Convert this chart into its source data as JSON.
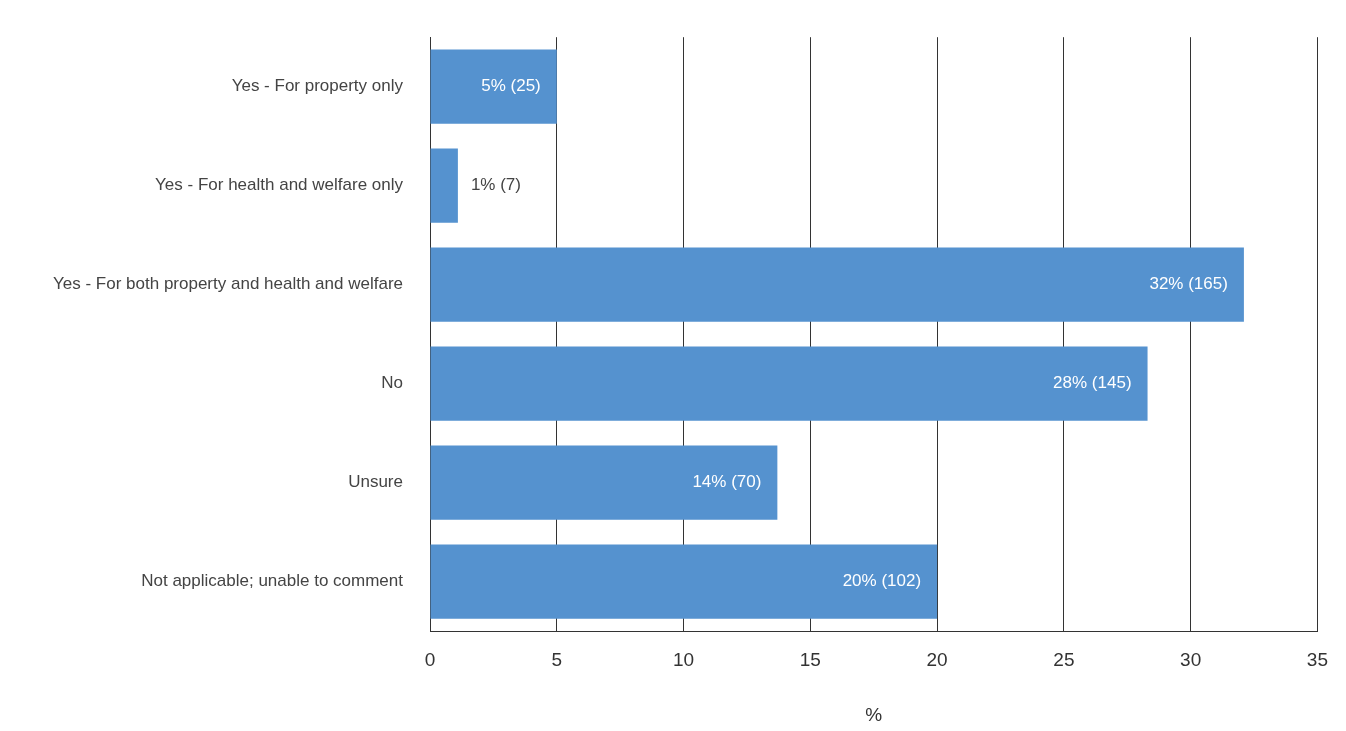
{
  "chart_data": {
    "type": "bar",
    "orientation": "horizontal",
    "categories": [
      "Yes - For property only",
      "Yes - For health and welfare only",
      "Yes - For both property and health and welfare",
      "No",
      "Unsure",
      "Not applicable; unable to comment"
    ],
    "values": [
      5.0,
      1.1,
      32.1,
      28.3,
      13.7,
      20.0
    ],
    "value_labels": [
      "5% (25)",
      "1% (7)",
      "32% (165)",
      "28% (145)",
      "14% (70)",
      "20% (102)"
    ],
    "color": "#5592cf",
    "xlim": [
      0,
      35
    ],
    "xticks": [
      0,
      5,
      10,
      15,
      20,
      25,
      30,
      35
    ],
    "xlabel": "%",
    "grid": "x"
  }
}
